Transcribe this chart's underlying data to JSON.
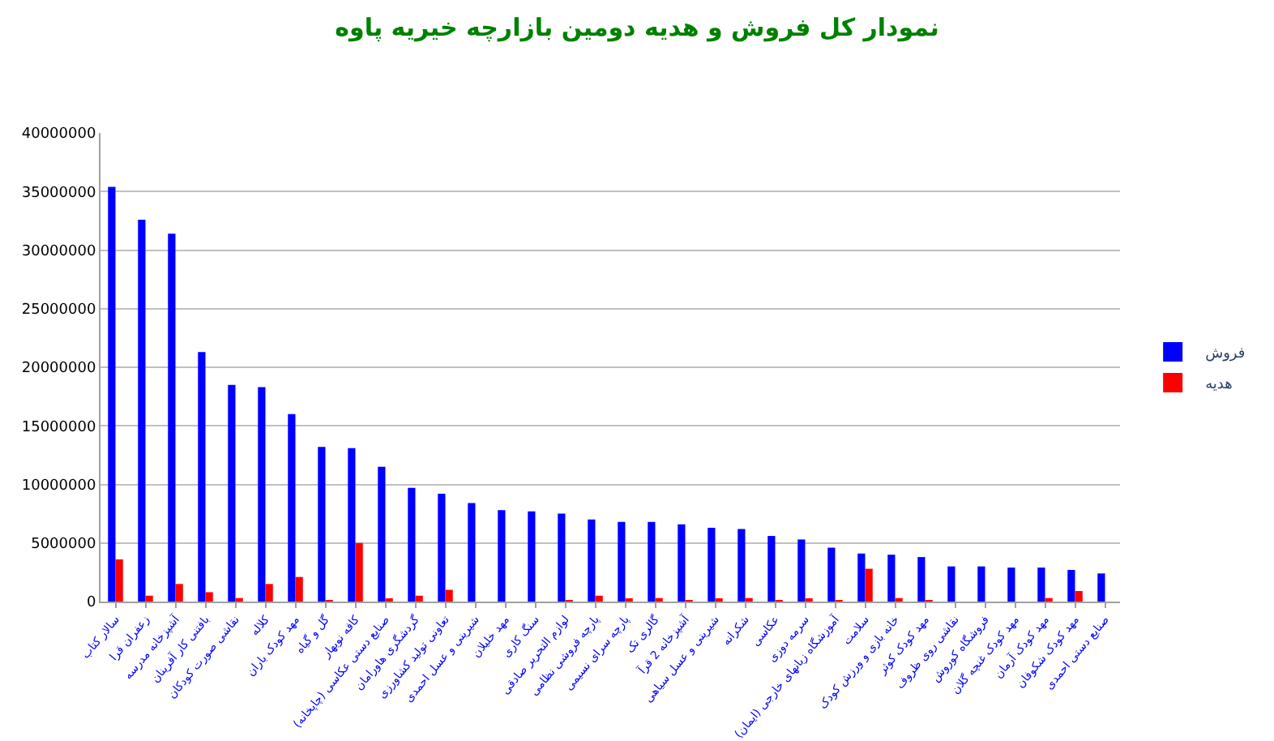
{
  "chart_data": {
    "type": "bar",
    "title": "نمودار کل فروش و هدیه دومین بازارچه خیریه پاوه",
    "categories": [
      "سالار کتاب",
      "زعفران قرا",
      "آشپزخانه مدرسه",
      "بافتنی کار آفرینان",
      "نقاشی صورت کودکان",
      "کلاله",
      "مهد کودک باران",
      "گل و گیاه",
      "کافه نوبهار",
      "صنایع دستی عکاسی (چاپخانه)",
      "گردشگری هاورامان",
      "تعاونی تولید کشاورزی",
      "شیرینی و عسل احمدی",
      "مهد خلیلان",
      "سنگ کاری",
      "لوازم التحریر صادقی",
      "پارچه فروشی نظامی",
      "پارچه سرای نسیمی",
      "گالری تک",
      "آشپزخانه 2 قرآ",
      "شیرینی و عسل سیاهی",
      "شکرانه",
      "عکاسی",
      "سرمه دوزی",
      "آموزشگاه زبانهای خارجی (ایمان)",
      "سلامت",
      "خانه بازی و ورزش کودک",
      "مهد کودک کوثر",
      "نقاشی روی ظروف",
      "فروشگاه کوروش",
      "مهد کودک غنچه گلان",
      "مهد کودک آرمان",
      "مهد کودک شکوفان",
      "صنایع دستی احمدی"
    ],
    "series": [
      {
        "name": "فروش",
        "color": "#0000ff",
        "values": [
          35400000,
          32600000,
          31400000,
          21300000,
          18500000,
          18300000,
          16000000,
          13200000,
          13100000,
          11500000,
          9700000,
          9200000,
          8400000,
          7800000,
          7700000,
          7500000,
          7000000,
          6800000,
          6800000,
          6600000,
          6300000,
          6200000,
          5600000,
          5300000,
          4600000,
          4100000,
          4000000,
          3800000,
          3000000,
          3000000,
          2900000,
          2900000,
          2700000,
          2400000
        ]
      },
      {
        "name": "هدیه",
        "color": "#ff0000",
        "values": [
          3600000,
          500000,
          1500000,
          800000,
          300000,
          1500000,
          2100000,
          100000,
          5000000,
          200000,
          500000,
          1000000,
          null,
          null,
          null,
          100000,
          500000,
          200000,
          300000,
          100000,
          200000,
          300000,
          100000,
          200000,
          100000,
          2800000,
          300000,
          100000,
          null,
          null,
          null,
          300000,
          900000,
          null
        ]
      }
    ],
    "ylim": [
      0,
      40000000
    ],
    "yticks": [
      0,
      5000000,
      10000000,
      15000000,
      20000000,
      25000000,
      30000000,
      35000000,
      40000000
    ],
    "grid": "y",
    "legend": "right"
  }
}
